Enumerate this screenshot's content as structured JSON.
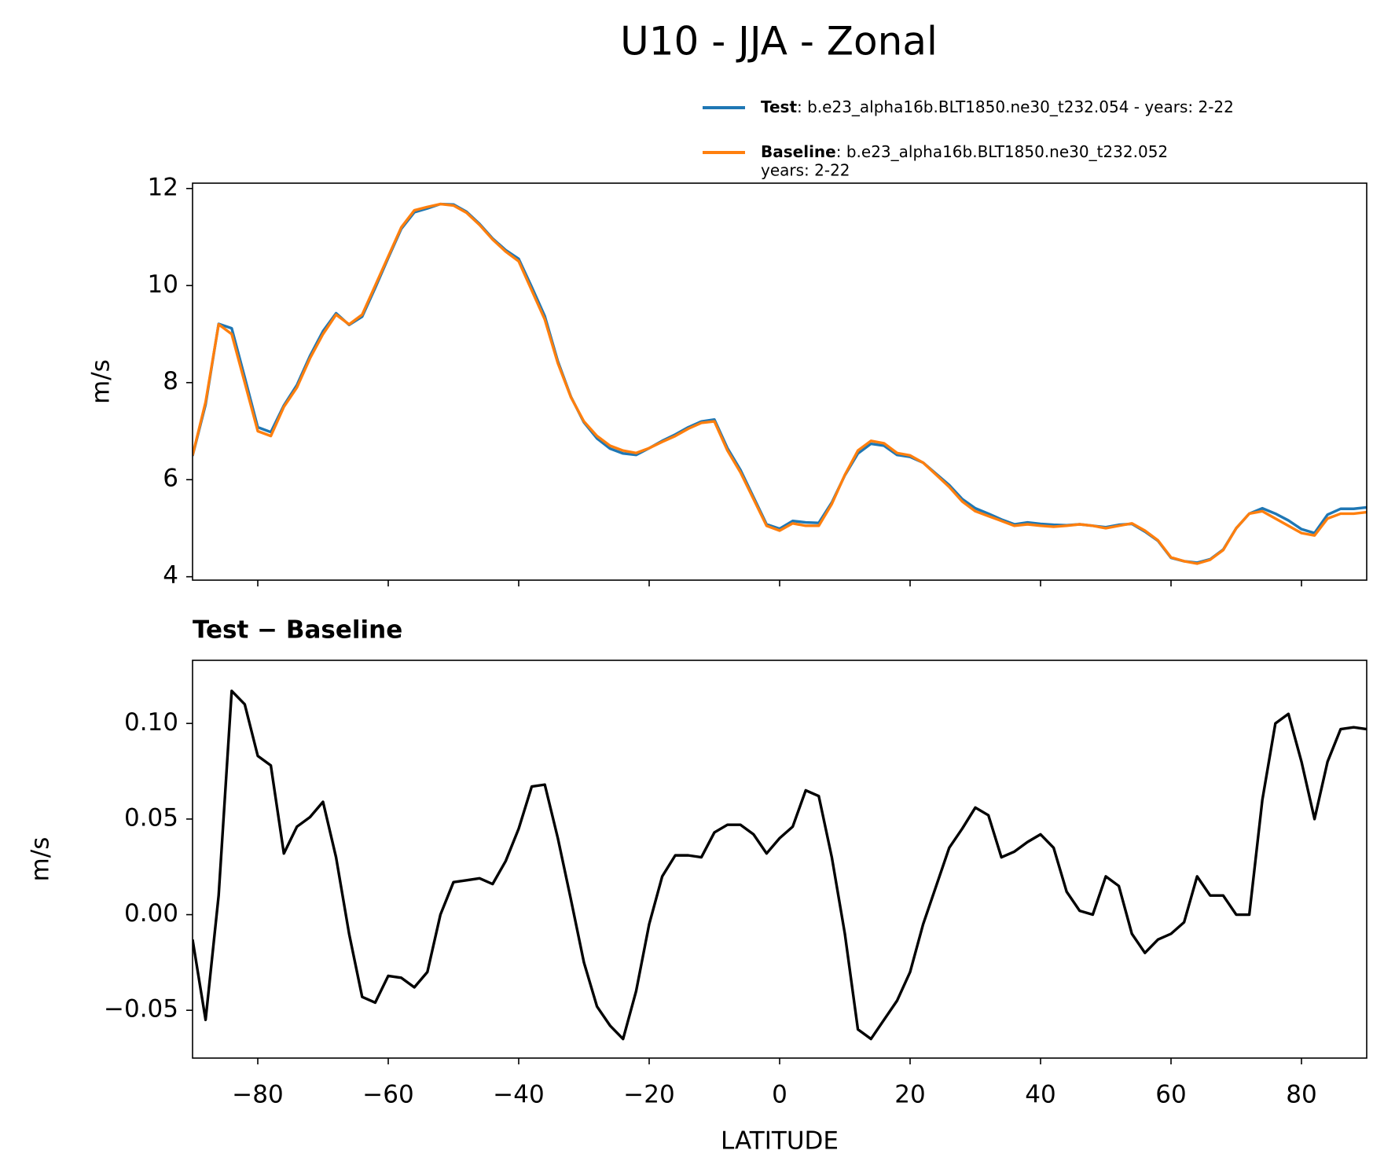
{
  "chart_data": [
    {
      "type": "line",
      "title": "U10 - JJA - Zonal",
      "ylabel": "m/s",
      "x": [
        -90,
        -88,
        -86,
        -84,
        -82,
        -80,
        -78,
        -76,
        -74,
        -72,
        -70,
        -68,
        -66,
        -64,
        -62,
        -60,
        -58,
        -56,
        -54,
        -52,
        -50,
        -48,
        -46,
        -44,
        -42,
        -40,
        -38,
        -36,
        -34,
        -32,
        -30,
        -28,
        -26,
        -24,
        -22,
        -20,
        -18,
        -16,
        -14,
        -12,
        -10,
        -8,
        -6,
        -4,
        -2,
        0,
        2,
        4,
        6,
        8,
        10,
        12,
        14,
        16,
        18,
        20,
        22,
        24,
        26,
        28,
        30,
        32,
        34,
        36,
        38,
        40,
        42,
        44,
        46,
        48,
        50,
        52,
        54,
        56,
        58,
        60,
        62,
        64,
        66,
        68,
        70,
        72,
        74,
        76,
        78,
        80,
        82,
        84,
        86,
        88,
        90
      ],
      "series": [
        {
          "name": "Test",
          "case_lines": [
            ": b.e23_alpha16b.BLT1850.ne30_t232.054 - years: 2-22"
          ],
          "color": "#1f77b4",
          "values": [
            6.49,
            7.55,
            9.21,
            9.12,
            8.11,
            7.08,
            6.98,
            7.53,
            7.95,
            8.55,
            9.06,
            9.43,
            9.19,
            9.36,
            9.95,
            10.57,
            11.17,
            11.51,
            11.59,
            11.68,
            11.67,
            11.52,
            11.27,
            10.97,
            10.73,
            10.55,
            9.97,
            9.37,
            8.44,
            7.71,
            7.18,
            6.85,
            6.64,
            6.54,
            6.51,
            6.65,
            6.8,
            6.93,
            7.08,
            7.2,
            7.24,
            6.65,
            6.2,
            5.64,
            5.08,
            4.99,
            5.15,
            5.12,
            5.11,
            5.53,
            6.09,
            6.54,
            6.74,
            6.7,
            6.51,
            6.47,
            6.35,
            6.12,
            5.89,
            5.6,
            5.41,
            5.3,
            5.18,
            5.08,
            5.12,
            5.09,
            5.07,
            5.06,
            5.08,
            5.05,
            5.02,
            5.07,
            5.09,
            4.93,
            4.74,
            4.39,
            4.32,
            4.29,
            4.36,
            4.56,
            5.0,
            5.3,
            5.41,
            5.3,
            5.16,
            4.98,
            4.9,
            5.28,
            5.4,
            5.4,
            5.43
          ]
        },
        {
          "name": "Baseline",
          "case_lines": [
            ": b.e23_alpha16b.BLT1850.ne30_t232.052",
            "years: 2-22"
          ],
          "color": "#ff7f0e",
          "values": [
            6.5,
            7.6,
            9.2,
            9.0,
            8.0,
            7.0,
            6.9,
            7.5,
            7.9,
            8.5,
            9.0,
            9.4,
            9.2,
            9.4,
            10.0,
            10.6,
            11.2,
            11.55,
            11.62,
            11.68,
            11.65,
            11.5,
            11.25,
            10.95,
            10.7,
            10.5,
            9.9,
            9.3,
            8.4,
            7.7,
            7.2,
            6.9,
            6.7,
            6.6,
            6.55,
            6.65,
            6.78,
            6.9,
            7.05,
            7.17,
            7.2,
            6.6,
            6.15,
            5.6,
            5.05,
            4.95,
            5.1,
            5.05,
            5.05,
            5.5,
            6.1,
            6.6,
            6.8,
            6.75,
            6.55,
            6.5,
            6.35,
            6.1,
            5.85,
            5.55,
            5.35,
            5.25,
            5.15,
            5.05,
            5.08,
            5.05,
            5.03,
            5.05,
            5.08,
            5.05,
            5.0,
            5.05,
            5.1,
            4.95,
            4.75,
            4.4,
            4.32,
            4.27,
            4.35,
            4.55,
            5.0,
            5.3,
            5.35,
            5.2,
            5.05,
            4.9,
            4.85,
            5.2,
            5.3,
            5.3,
            5.33
          ]
        }
      ],
      "xlim": [
        -90,
        90
      ],
      "xticks": [
        -80,
        -60,
        -40,
        -20,
        0,
        20,
        40,
        60,
        80
      ],
      "ylim": [
        3.93,
        12.11
      ],
      "yticks": [
        4,
        6,
        8,
        10,
        12
      ]
    },
    {
      "type": "line",
      "title": "Test − Baseline",
      "ylabel": "m/s",
      "xlabel": "LATITUDE",
      "x": [
        -90,
        -88,
        -86,
        -84,
        -82,
        -80,
        -78,
        -76,
        -74,
        -72,
        -70,
        -68,
        -66,
        -64,
        -62,
        -60,
        -58,
        -56,
        -54,
        -52,
        -50,
        -48,
        -46,
        -44,
        -42,
        -40,
        -38,
        -36,
        -34,
        -32,
        -30,
        -28,
        -26,
        -24,
        -22,
        -20,
        -18,
        -16,
        -14,
        -12,
        -10,
        -8,
        -6,
        -4,
        -2,
        0,
        2,
        4,
        6,
        8,
        10,
        12,
        14,
        16,
        18,
        20,
        22,
        24,
        26,
        28,
        30,
        32,
        34,
        36,
        38,
        40,
        42,
        44,
        46,
        48,
        50,
        52,
        54,
        56,
        58,
        60,
        62,
        64,
        66,
        68,
        70,
        72,
        74,
        76,
        78,
        80,
        82,
        84,
        86,
        88,
        90
      ],
      "color": "#000000",
      "values": [
        -0.013,
        -0.055,
        0.01,
        0.117,
        0.11,
        0.083,
        0.078,
        0.032,
        0.046,
        0.051,
        0.059,
        0.03,
        -0.01,
        -0.043,
        -0.046,
        -0.032,
        -0.033,
        -0.038,
        -0.03,
        0.0,
        0.017,
        0.018,
        0.019,
        0.016,
        0.028,
        0.045,
        0.067,
        0.068,
        0.04,
        0.008,
        -0.025,
        -0.048,
        -0.058,
        -0.065,
        -0.04,
        -0.005,
        0.02,
        0.031,
        0.031,
        0.03,
        0.043,
        0.047,
        0.047,
        0.042,
        0.032,
        0.04,
        0.046,
        0.065,
        0.062,
        0.03,
        -0.01,
        -0.06,
        -0.065,
        -0.055,
        -0.045,
        -0.03,
        -0.005,
        0.015,
        0.035,
        0.045,
        0.056,
        0.052,
        0.03,
        0.033,
        0.038,
        0.042,
        0.035,
        0.012,
        0.002,
        0.0,
        0.02,
        0.015,
        -0.01,
        -0.02,
        -0.013,
        -0.01,
        -0.004,
        0.02,
        0.01,
        0.01,
        0.0,
        0.0,
        0.06,
        0.1,
        0.105,
        0.08,
        0.05,
        0.08,
        0.097,
        0.098,
        0.097
      ],
      "xlim": [
        -90,
        90
      ],
      "xticks": [
        {
          "value": -80,
          "label": "−80"
        },
        {
          "value": -60,
          "label": "−60"
        },
        {
          "value": -40,
          "label": "−40"
        },
        {
          "value": -20,
          "label": "−20"
        },
        0,
        20,
        40,
        60,
        80
      ],
      "ylim": [
        -0.075,
        0.133
      ],
      "yticks": [
        {
          "value": -0.05,
          "label": "−0.05"
        },
        {
          "value": 0,
          "label": "0.00"
        },
        {
          "value": 0.05,
          "label": "0.05"
        },
        {
          "value": 0.1,
          "label": "0.10"
        }
      ]
    }
  ]
}
